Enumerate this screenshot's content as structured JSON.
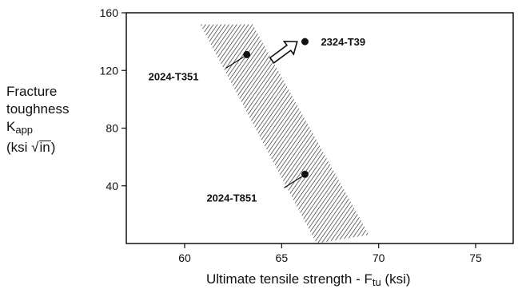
{
  "chart_data": {
    "type": "scatter",
    "ylabel": {
      "line1": "Fracture",
      "line2": "toughness",
      "line3_main": "K",
      "line3_sub": "app",
      "line4_pre": "(ksi ",
      "line4_root_sign": "√",
      "line4_root": "in",
      "line4_post": ")"
    },
    "xlabel": {
      "main": "Ultimate tensile strength - F",
      "sub": "tu",
      "unit": " (ksi)"
    },
    "xlim": [
      57,
      78
    ],
    "ylim": [
      0,
      160
    ],
    "x_ticks": [
      60,
      65,
      70,
      75
    ],
    "y_ticks": [
      40,
      80,
      120,
      160
    ],
    "points": [
      {
        "name": "2024-T351",
        "x": 63.2,
        "y": 131
      },
      {
        "name": "2324-T39",
        "x": 66.2,
        "y": 140
      },
      {
        "name": "2024-T851",
        "x": 66.2,
        "y": 48
      }
    ],
    "band": {
      "description_values": [
        [
          60.8,
          152
        ],
        [
          63.5,
          152
        ],
        [
          69.5,
          6
        ],
        [
          66.8,
          0
        ]
      ]
    },
    "arrow": {
      "from": [
        64.5,
        127
      ],
      "to": [
        65.8,
        140
      ]
    },
    "grid": false
  }
}
